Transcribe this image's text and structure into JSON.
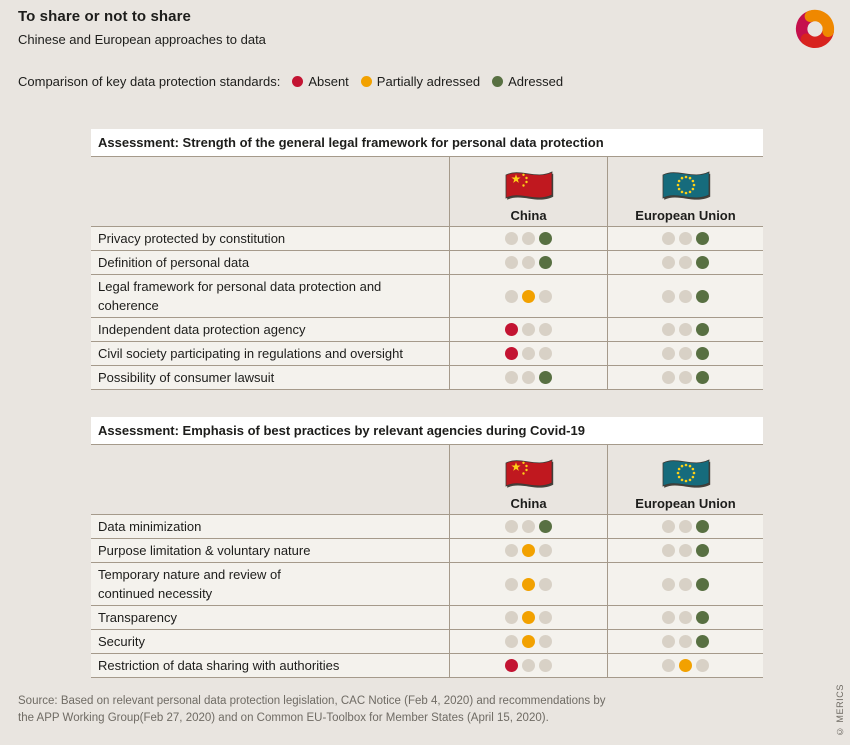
{
  "header": {
    "title": "To share or not to share",
    "subtitle": "Chinese and European approaches to data"
  },
  "legend": {
    "label": "Comparison of key data protection standards:",
    "items": [
      {
        "key": "absent",
        "label": "Absent",
        "color": "#c31432"
      },
      {
        "key": "partial",
        "label": "Partially adressed",
        "color": "#f2a100"
      },
      {
        "key": "addressed",
        "label": "Adressed",
        "color": "#587042"
      }
    ]
  },
  "chart_data": {
    "type": "table",
    "columns": [
      "China",
      "European Union"
    ],
    "rating_scale": [
      "absent",
      "partial",
      "addressed"
    ],
    "rating_colors": {
      "absent": "#c31432",
      "partial": "#f2a100",
      "addressed": "#587042",
      "inactive": "#d8d1c6"
    },
    "tables": [
      {
        "header": "Assessment: Strength of the general legal framework for personal data protection",
        "rows": [
          {
            "label": "Privacy protected by constitution",
            "china": "addressed",
            "eu": "addressed"
          },
          {
            "label": "Definition of personal data",
            "china": "addressed",
            "eu": "addressed"
          },
          {
            "label": "Legal framework for personal data protection and coherence",
            "lines": [
              "Legal framework for personal data protection and",
              "coherence"
            ],
            "china": "partial",
            "eu": "addressed"
          },
          {
            "label": "Independent data protection agency",
            "china": "absent",
            "eu": "addressed"
          },
          {
            "label": "Civil society participating in regulations and oversight",
            "china": "absent",
            "eu": "addressed"
          },
          {
            "label": "Possibility of consumer lawsuit",
            "china": "addressed",
            "eu": "addressed"
          }
        ]
      },
      {
        "header": "Assessment: Emphasis of best practices by relevant agencies during Covid-19",
        "rows": [
          {
            "label": "Data minimization",
            "china": "addressed",
            "eu": "addressed"
          },
          {
            "label": "Purpose limitation & voluntary nature",
            "china": "partial",
            "eu": "addressed"
          },
          {
            "label": "Temporary nature and review of continued necessity",
            "lines": [
              "Temporary nature and review of",
              "continued necessity"
            ],
            "china": "partial",
            "eu": "addressed"
          },
          {
            "label": "Transparency",
            "china": "partial",
            "eu": "addressed"
          },
          {
            "label": "Security",
            "china": "partial",
            "eu": "addressed"
          },
          {
            "label": "Restriction of data sharing with authorities",
            "china": "absent",
            "eu": "partial"
          }
        ]
      }
    ]
  },
  "flags": {
    "china": {
      "bg": "#c0181f",
      "star": "#fdd017"
    },
    "eu": {
      "bg": "#166b7c",
      "star": "#fdd017"
    }
  },
  "logo_colors": {
    "orange": "#ef8800",
    "red": "#d8231f",
    "crimson": "#c5104c"
  },
  "footer": {
    "source_line1": "Source: Based on relevant personal data protection legislation, CAC Notice (Feb 4, 2020) and recommendations by",
    "source_line2": "the APP Working Group(Feb 27, 2020) and on Common EU-Toolbox for Member States (April 15, 2020).",
    "copyright": "© MERICS"
  }
}
